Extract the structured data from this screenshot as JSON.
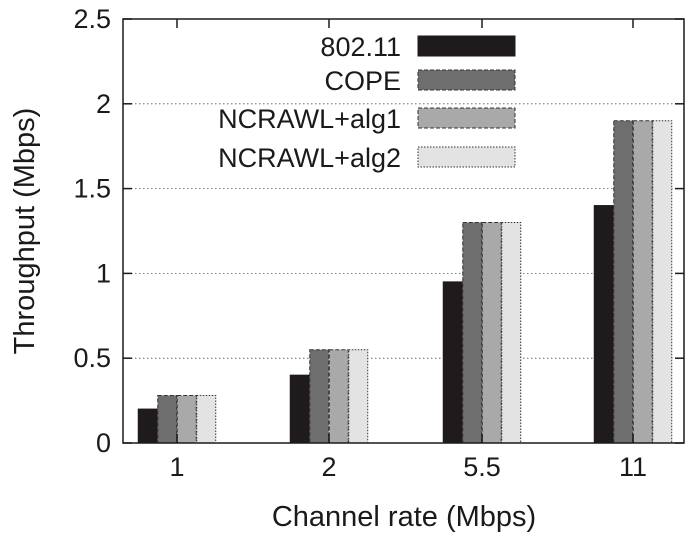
{
  "chart_data": {
    "type": "bar",
    "title": "",
    "xlabel": "Channel rate (Mbps)",
    "ylabel": "Throughput (Mbps)",
    "categories": [
      "1",
      "2",
      "5.5",
      "11"
    ],
    "ylim": [
      0,
      2.5
    ],
    "yticks": [
      "0",
      "0.5",
      "1",
      "1.5",
      "2",
      "2.5"
    ],
    "grid": "horizontal dotted",
    "legend_position": "top-right",
    "series": [
      {
        "name": "802.11",
        "values": [
          0.2,
          0.4,
          0.95,
          1.4
        ],
        "color": "#1f1a1c",
        "border": "solid"
      },
      {
        "name": "COPE",
        "values": [
          0.28,
          0.55,
          1.3,
          1.9
        ],
        "color": "#6e6e6e",
        "border": "dashed"
      },
      {
        "name": "NCRAWL+alg1",
        "values": [
          0.28,
          0.55,
          1.3,
          1.9
        ],
        "color": "#a9a9a9",
        "border": "dashed"
      },
      {
        "name": "NCRAWL+alg2",
        "values": [
          0.28,
          0.55,
          1.3,
          1.9
        ],
        "color": "#e3e3e3",
        "border": "dotted"
      }
    ]
  }
}
